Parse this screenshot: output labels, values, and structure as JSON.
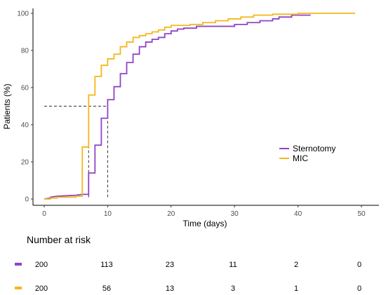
{
  "chart_data": {
    "type": "line",
    "subtype": "kaplan-meier-cumulative-incidence",
    "title": "",
    "xlabel": "Time (days)",
    "ylabel": "Patients (%)",
    "xlim": [
      0,
      50
    ],
    "ylim": [
      0,
      100
    ],
    "x_ticks": [
      0,
      10,
      20,
      30,
      40,
      50
    ],
    "y_ticks": [
      0,
      20,
      40,
      60,
      80,
      100
    ],
    "grid": false,
    "legend_position": "right",
    "series": [
      {
        "name": "Sternotomy",
        "color": "#8E44C6",
        "step_points": [
          [
            0,
            0
          ],
          [
            1,
            0.5
          ],
          [
            1,
            1
          ],
          [
            2,
            1.5
          ],
          [
            5,
            2
          ],
          [
            6,
            2.5
          ],
          [
            7,
            2.5
          ],
          [
            7,
            14
          ],
          [
            8,
            14
          ],
          [
            8,
            29
          ],
          [
            9,
            29
          ],
          [
            9,
            43.5
          ],
          [
            10,
            43.5
          ],
          [
            10,
            53.5
          ],
          [
            11,
            53.5
          ],
          [
            11,
            60.5
          ],
          [
            12,
            60.5
          ],
          [
            12,
            67.5
          ],
          [
            13,
            67.5
          ],
          [
            13,
            73.5
          ],
          [
            14,
            73.5
          ],
          [
            14,
            78
          ],
          [
            15,
            78
          ],
          [
            15,
            82
          ],
          [
            16,
            82
          ],
          [
            16,
            84.5
          ],
          [
            17,
            84.5
          ],
          [
            17,
            86
          ],
          [
            18,
            86
          ],
          [
            18,
            87
          ],
          [
            19,
            87
          ],
          [
            19,
            89
          ],
          [
            20,
            89
          ],
          [
            20,
            90.5
          ],
          [
            21,
            90.5
          ],
          [
            21,
            91.5
          ],
          [
            22,
            91.5
          ],
          [
            22,
            92
          ],
          [
            24,
            92
          ],
          [
            24,
            93
          ],
          [
            30,
            93
          ],
          [
            30,
            94
          ],
          [
            32,
            94
          ],
          [
            32,
            95
          ],
          [
            34,
            95
          ],
          [
            34,
            96
          ],
          [
            36,
            96
          ],
          [
            36,
            97
          ],
          [
            37,
            97
          ],
          [
            37,
            98
          ],
          [
            39,
            98
          ],
          [
            39,
            99
          ],
          [
            42,
            99
          ]
        ]
      },
      {
        "name": "MIC",
        "color": "#F5B71A",
        "step_points": [
          [
            0,
            0
          ],
          [
            1,
            0
          ],
          [
            1,
            0.5
          ],
          [
            2,
            0.5
          ],
          [
            2,
            1
          ],
          [
            5,
            1
          ],
          [
            5,
            1.5
          ],
          [
            6,
            1.5
          ],
          [
            6,
            28
          ],
          [
            7,
            28
          ],
          [
            7,
            56
          ],
          [
            8,
            56
          ],
          [
            8,
            66
          ],
          [
            9,
            66
          ],
          [
            9,
            72
          ],
          [
            10,
            72
          ],
          [
            10,
            75.5
          ],
          [
            11,
            75.5
          ],
          [
            11,
            78
          ],
          [
            12,
            78
          ],
          [
            12,
            82
          ],
          [
            13,
            82
          ],
          [
            13,
            84.5
          ],
          [
            14,
            84.5
          ],
          [
            14,
            87
          ],
          [
            15,
            87
          ],
          [
            15,
            88
          ],
          [
            16,
            88
          ],
          [
            16,
            89
          ],
          [
            17,
            89
          ],
          [
            17,
            90
          ],
          [
            18,
            90
          ],
          [
            18,
            91
          ],
          [
            19,
            91
          ],
          [
            19,
            92.5
          ],
          [
            20,
            92.5
          ],
          [
            20,
            93.5
          ],
          [
            23,
            93.5
          ],
          [
            23,
            94
          ],
          [
            25,
            94
          ],
          [
            25,
            95
          ],
          [
            27,
            95
          ],
          [
            27,
            96
          ],
          [
            29,
            96
          ],
          [
            29,
            97
          ],
          [
            31,
            97
          ],
          [
            31,
            98
          ],
          [
            33,
            98
          ],
          [
            33,
            99
          ],
          [
            36,
            99
          ],
          [
            36,
            99.5
          ],
          [
            40,
            99.5
          ],
          [
            40,
            100
          ],
          [
            49,
            100
          ]
        ]
      }
    ],
    "median_reference": {
      "level": 50,
      "x_values": [
        7,
        10
      ]
    },
    "risk_table": {
      "title": "Number at risk",
      "time_points": [
        0,
        10,
        20,
        30,
        40,
        50
      ],
      "rows": [
        {
          "series": "Sternotomy",
          "color": "#8E44C6",
          "values": [
            "200",
            "113",
            "23",
            "11",
            "2",
            "0"
          ]
        },
        {
          "series": "MIC",
          "color": "#F5B71A",
          "values": [
            "200",
            "56",
            "13",
            "3",
            "1",
            "0"
          ]
        }
      ]
    }
  }
}
